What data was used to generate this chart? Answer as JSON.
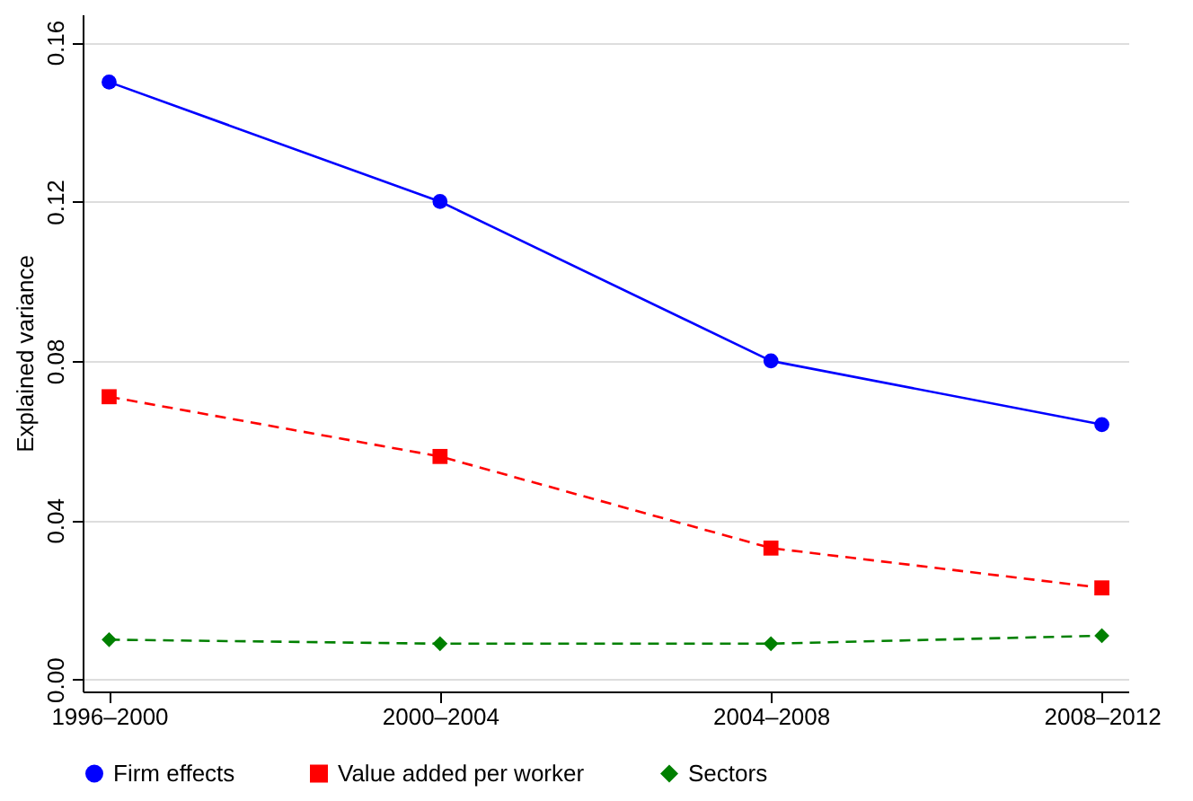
{
  "chart_data": {
    "type": "line",
    "ylabel": "Explained variance",
    "categories": [
      "1996–2000",
      "2000–2004",
      "2004–2008",
      "2008–2012"
    ],
    "series": [
      {
        "name": "Firm effects",
        "color": "#0000ff",
        "values": [
          0.15,
          0.12,
          0.08,
          0.064
        ],
        "marker": "circle",
        "line_style": "solid"
      },
      {
        "name": "Value added per worker",
        "color": "#ff0000",
        "values": [
          0.071,
          0.056,
          0.033,
          0.023
        ],
        "marker": "square",
        "line_style": "dashed"
      },
      {
        "name": "Sectors",
        "color": "#008000",
        "values": [
          0.01,
          0.009,
          0.009,
          0.011
        ],
        "marker": "diamond",
        "line_style": "dashed"
      }
    ],
    "ylim": [
      -0.003,
      0.167
    ],
    "yticks": [
      {
        "value": 0,
        "label": "0.00"
      },
      0.04,
      0.08,
      0.12,
      0.16
    ],
    "grid": "y",
    "legend": "bottom"
  }
}
